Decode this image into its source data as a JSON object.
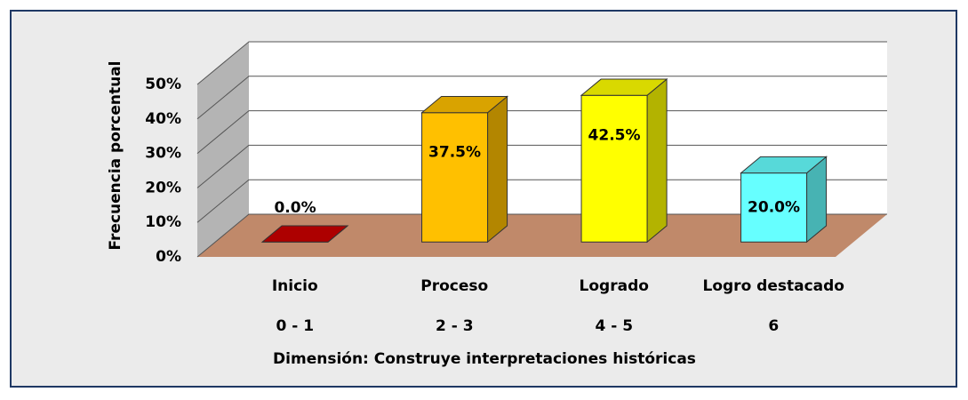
{
  "chart_data": {
    "type": "bar3d",
    "y_axis_label": "Frecuencia porcentual",
    "x_axis_label": "Dimensión: Construye interpretaciones históricas",
    "categories": [
      "Inicio",
      "Proceso",
      "Logrado",
      "Logro destacado"
    ],
    "category_ranges": [
      "0 - 1",
      "2 - 3",
      "4 - 5",
      "6"
    ],
    "values": [
      0.0,
      37.5,
      42.5,
      20.0
    ],
    "value_labels": [
      "0.0%",
      "37.5%",
      "42.5%",
      "20.0%"
    ],
    "colors": [
      "#cc0000",
      "#ffc000",
      "#ffff00",
      "#66ffff"
    ],
    "ylim": [
      0,
      50
    ],
    "yticks": [
      {
        "value": 0,
        "label": "0%"
      },
      {
        "value": 10,
        "label": "10%"
      },
      {
        "value": 20,
        "label": "20%"
      },
      {
        "value": 30,
        "label": "30%"
      },
      {
        "value": 40,
        "label": "40%"
      },
      {
        "value": 50,
        "label": "50%"
      }
    ],
    "grid": true
  }
}
